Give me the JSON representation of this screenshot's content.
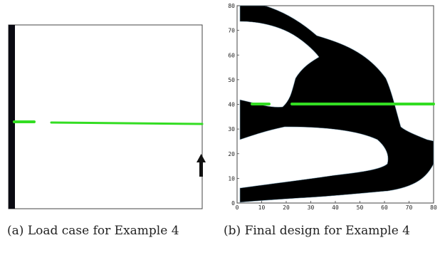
{
  "figure": {
    "panel_a": {
      "caption_label": "(a)",
      "caption_text": "Load case for Example 4"
    },
    "panel_b": {
      "caption_label": "(b)",
      "caption_text": "Final design for Example 4",
      "x_ticks": [
        "0",
        "10",
        "20",
        "30",
        "40",
        "50",
        "60",
        "70",
        "80"
      ],
      "y_ticks": [
        "0",
        "10",
        "20",
        "30",
        "40",
        "50",
        "60",
        "70",
        "80"
      ],
      "xlim": [
        0,
        80
      ],
      "ylim": [
        0,
        80
      ]
    },
    "colors": {
      "material": "#000000",
      "load_line": "#33dd22",
      "frame": "#444444",
      "arrow": "#111111"
    }
  }
}
